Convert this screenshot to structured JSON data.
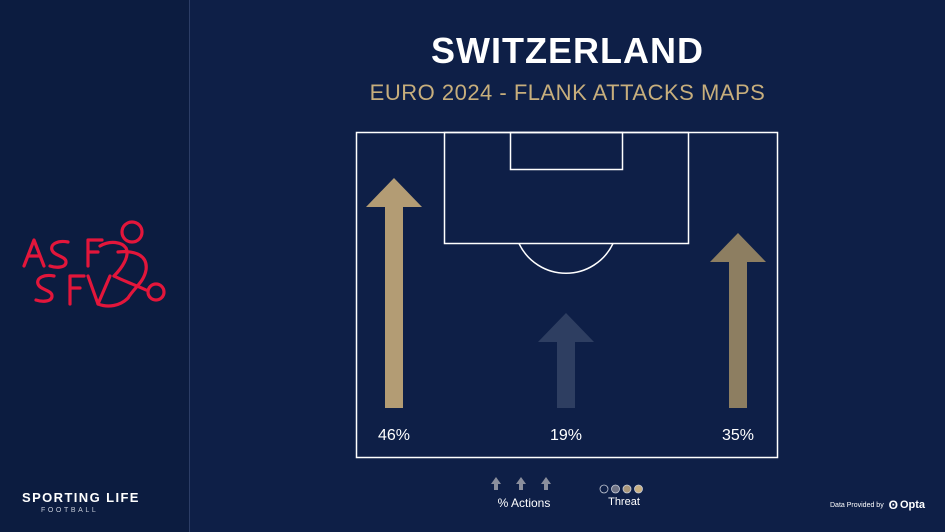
{
  "title": "SWITZERLAND",
  "subtitle": "EURO 2024 - FLANK ATTACKS MAPS",
  "brand": {
    "name": "SPORTING LIFE",
    "sub": "FOOTBALL"
  },
  "logo": {
    "icon": "sfv-crest-icon",
    "color": "#e3163b",
    "lettering": "ASF SFV"
  },
  "legend": {
    "actions_label": "% Actions",
    "threat_label": "Threat",
    "threat_colors": [
      "#0e1f47",
      "#6f7385",
      "#a8967a",
      "#c8b083"
    ]
  },
  "provider": {
    "prefix": "Data Provided by",
    "name": "Opta"
  },
  "chart_data": {
    "type": "bar",
    "categories": [
      "Left flank",
      "Centre",
      "Right flank"
    ],
    "values": [
      46,
      19,
      35
    ],
    "value_labels": [
      "46%",
      "19%",
      "35%"
    ],
    "unit": "%",
    "arrow_colors": [
      "#b39c74",
      "#2e3e61",
      "#8d7e61"
    ],
    "title": "SWITZERLAND",
    "subtitle": "EURO 2024 - FLANK ATTACKS MAPS",
    "legend": [
      "% Actions",
      "Threat"
    ]
  }
}
